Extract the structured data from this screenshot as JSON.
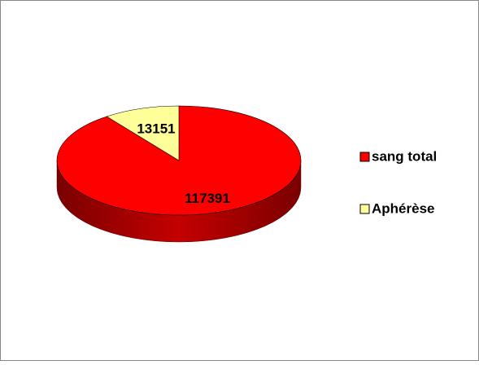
{
  "chart_data": {
    "type": "pie",
    "categories": [
      "sang total",
      "Aphérèse"
    ],
    "values": [
      117391,
      13151
    ],
    "colors": [
      "#ff0000",
      "#ffff99"
    ],
    "legend": "right"
  }
}
